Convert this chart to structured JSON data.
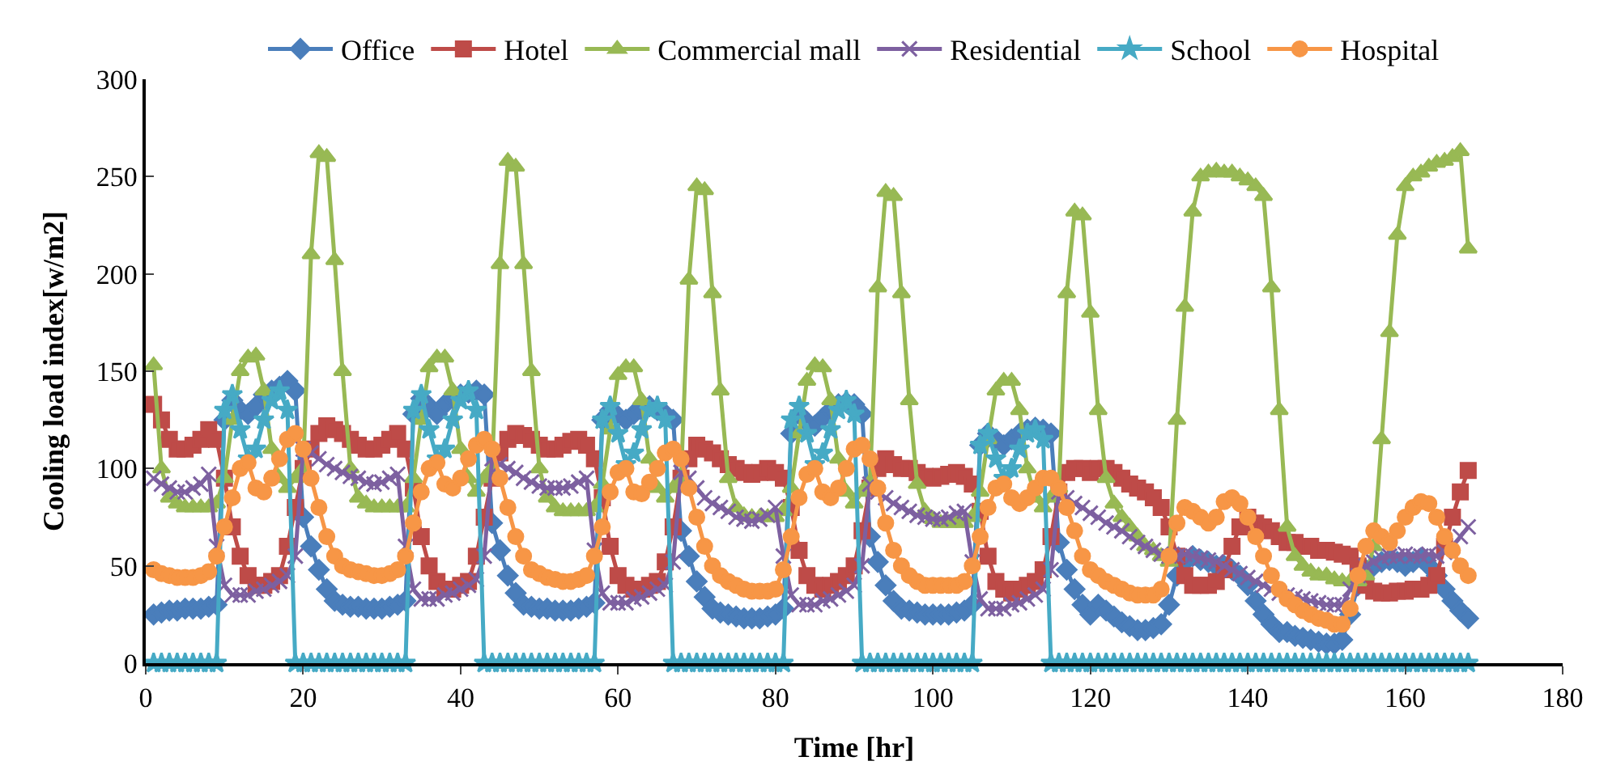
{
  "chart_data": {
    "type": "line",
    "xlabel": "Time [hr]",
    "ylabel": "Cooling load index[w/m2]",
    "x": [
      1,
      2,
      3,
      4,
      5,
      6,
      7,
      8,
      9,
      10,
      11,
      12,
      13,
      14,
      15,
      16,
      17,
      18,
      19,
      20,
      21,
      22,
      23,
      24,
      25,
      26,
      27,
      28,
      29,
      30,
      31,
      32,
      33,
      34,
      35,
      36,
      37,
      38,
      39,
      40,
      41,
      42,
      43,
      44,
      45,
      46,
      47,
      48,
      49,
      50,
      51,
      52,
      53,
      54,
      55,
      56,
      57,
      58,
      59,
      60,
      61,
      62,
      63,
      64,
      65,
      66,
      67,
      68,
      69,
      70,
      71,
      72,
      73,
      74,
      75,
      76,
      77,
      78,
      79,
      80,
      81,
      82,
      83,
      84,
      85,
      86,
      87,
      88,
      89,
      90,
      91,
      92,
      93,
      94,
      95,
      96,
      97,
      98,
      99,
      100,
      101,
      102,
      103,
      104,
      105,
      106,
      107,
      108,
      109,
      110,
      111,
      112,
      113,
      114,
      115,
      116,
      117,
      118,
      119,
      120,
      121,
      122,
      123,
      124,
      125,
      126,
      127,
      128,
      129,
      130,
      131,
      132,
      133,
      134,
      135,
      136,
      137,
      138,
      139,
      140,
      141,
      142,
      143,
      144,
      145,
      146,
      147,
      148,
      149,
      150,
      151,
      152,
      153,
      154,
      155,
      156,
      157,
      158,
      159,
      160,
      161,
      162,
      163,
      164,
      165,
      166,
      167,
      168
    ],
    "xlim": [
      0,
      180
    ],
    "xticks": [
      0,
      20,
      40,
      60,
      80,
      100,
      120,
      140,
      160,
      180
    ],
    "ylim": [
      0,
      300
    ],
    "yticks": [
      0,
      50,
      100,
      150,
      200,
      250,
      300
    ],
    "legend": "top",
    "line_style": "solid",
    "series": [
      {
        "name": "Office",
        "color": "#4a7ebb",
        "marker": "diamond",
        "values": [
          25,
          26,
          27,
          27,
          28,
          28,
          28,
          29,
          30,
          125,
          135,
          130,
          128,
          132,
          138,
          140,
          142,
          145,
          140,
          75,
          60,
          48,
          38,
          32,
          30,
          29,
          29,
          28,
          28,
          28,
          29,
          30,
          32,
          128,
          136,
          132,
          128,
          133,
          136,
          138,
          139,
          140,
          138,
          72,
          58,
          45,
          36,
          30,
          29,
          28,
          28,
          27,
          27,
          27,
          28,
          29,
          31,
          125,
          130,
          127,
          125,
          128,
          130,
          132,
          130,
          128,
          125,
          68,
          55,
          42,
          34,
          28,
          26,
          25,
          24,
          23,
          23,
          23,
          24,
          25,
          28,
          118,
          128,
          124,
          122,
          126,
          130,
          133,
          134,
          133,
          128,
          65,
          52,
          40,
          32,
          28,
          27,
          26,
          25,
          25,
          25,
          25,
          26,
          27,
          30,
          112,
          118,
          115,
          112,
          115,
          118,
          120,
          121,
          120,
          118,
          62,
          48,
          38,
          30,
          25,
          30,
          27,
          24,
          21,
          19,
          17,
          17,
          18,
          20,
          30,
          45,
          52,
          55,
          53,
          52,
          50,
          50,
          48,
          45,
          40,
          32,
          25,
          20,
          16,
          16,
          14,
          13,
          12,
          11,
          10,
          10,
          12,
          25,
          40,
          48,
          50,
          52,
          53,
          52,
          50,
          52,
          54,
          50,
          45,
          38,
          32,
          27,
          23
        ]
      },
      {
        "name": "Hotel",
        "color": "#be4b48",
        "marker": "square",
        "values": [
          133,
          125,
          115,
          110,
          110,
          112,
          115,
          120,
          115,
          95,
          70,
          55,
          45,
          40,
          40,
          42,
          45,
          60,
          80,
          100,
          110,
          118,
          122,
          120,
          118,
          115,
          112,
          110,
          110,
          112,
          115,
          118,
          110,
          90,
          65,
          50,
          42,
          38,
          38,
          40,
          42,
          55,
          75,
          95,
          108,
          115,
          118,
          117,
          115,
          112,
          110,
          110,
          112,
          114,
          115,
          112,
          105,
          85,
          60,
          45,
          40,
          38,
          38,
          40,
          42,
          52,
          70,
          95,
          105,
          112,
          110,
          108,
          105,
          102,
          100,
          98,
          97,
          98,
          100,
          98,
          95,
          80,
          58,
          45,
          40,
          38,
          40,
          42,
          45,
          50,
          68,
          90,
          100,
          105,
          102,
          100,
          100,
          98,
          96,
          95,
          96,
          97,
          98,
          96,
          92,
          78,
          55,
          42,
          38,
          36,
          38,
          40,
          42,
          48,
          65,
          88,
          98,
          100,
          100,
          98,
          100,
          100,
          98,
          95,
          92,
          90,
          88,
          85,
          80,
          70,
          55,
          45,
          40,
          40,
          40,
          42,
          48,
          60,
          70,
          75,
          72,
          70,
          68,
          65,
          62,
          62,
          60,
          60,
          58,
          58,
          57,
          56,
          55,
          50,
          40,
          37,
          36,
          36,
          37,
          37,
          38,
          38,
          40,
          45,
          60,
          75,
          88,
          99
        ]
      },
      {
        "name": "Commercial mall",
        "color": "#98b954",
        "marker": "triangle",
        "values": [
          153,
          100,
          85,
          82,
          80,
          80,
          80,
          80,
          82,
          95,
          125,
          150,
          157,
          158,
          140,
          110,
          95,
          90,
          95,
          100,
          210,
          262,
          260,
          207,
          150,
          100,
          85,
          82,
          80,
          80,
          80,
          80,
          80,
          95,
          125,
          152,
          157,
          157,
          140,
          110,
          95,
          88,
          95,
          100,
          205,
          258,
          255,
          205,
          150,
          100,
          85,
          80,
          78,
          78,
          78,
          78,
          80,
          92,
          120,
          148,
          152,
          152,
          135,
          105,
          90,
          85,
          90,
          95,
          197,
          245,
          243,
          190,
          140,
          95,
          80,
          76,
          75,
          75,
          75,
          75,
          78,
          90,
          118,
          145,
          153,
          152,
          135,
          105,
          88,
          82,
          88,
          93,
          193,
          242,
          240,
          190,
          135,
          92,
          78,
          74,
          72,
          72,
          72,
          72,
          75,
          88,
          115,
          140,
          145,
          145,
          130,
          100,
          85,
          80,
          85,
          90,
          190,
          232,
          230,
          180,
          130,
          95,
          82,
          75,
          70,
          65,
          60,
          58,
          55,
          52,
          125,
          183,
          232,
          250,
          252,
          253,
          252,
          252,
          250,
          248,
          245,
          240,
          193,
          130,
          70,
          55,
          50,
          47,
          45,
          45,
          43,
          42,
          42,
          42,
          45,
          60,
          115,
          170,
          220,
          245,
          250,
          252,
          255,
          257,
          258,
          260,
          263,
          213
        ]
      },
      {
        "name": "Residential",
        "color": "#7d60a0",
        "marker": "cross",
        "values": [
          95,
          92,
          90,
          88,
          88,
          90,
          92,
          97,
          60,
          40,
          35,
          35,
          35,
          37,
          38,
          40,
          42,
          45,
          55,
          110,
          108,
          105,
          102,
          100,
          98,
          96,
          95,
          93,
          92,
          93,
          95,
          97,
          60,
          38,
          33,
          33,
          33,
          35,
          36,
          38,
          40,
          43,
          55,
          105,
          102,
          100,
          98,
          95,
          93,
          91,
          90,
          90,
          90,
          91,
          93,
          95,
          58,
          36,
          31,
          31,
          31,
          33,
          34,
          36,
          38,
          40,
          52,
          98,
          95,
          90,
          85,
          82,
          80,
          78,
          75,
          74,
          73,
          74,
          76,
          80,
          55,
          35,
          30,
          30,
          30,
          32,
          33,
          35,
          37,
          40,
          50,
          92,
          88,
          85,
          82,
          80,
          78,
          76,
          75,
          74,
          74,
          75,
          77,
          78,
          52,
          33,
          28,
          28,
          28,
          30,
          31,
          33,
          35,
          38,
          48,
          88,
          85,
          82,
          80,
          77,
          75,
          72,
          70,
          68,
          65,
          62,
          60,
          58,
          56,
          55,
          55,
          56,
          55,
          54,
          53,
          52,
          50,
          48,
          46,
          44,
          42,
          40,
          38,
          36,
          35,
          34,
          33,
          32,
          31,
          30,
          30,
          30,
          38,
          45,
          50,
          52,
          54,
          55,
          55,
          56,
          55,
          55,
          56,
          55,
          57,
          60,
          65,
          70
        ]
      },
      {
        "name": "School",
        "color": "#46aac5",
        "marker": "star",
        "values": [
          0,
          0,
          0,
          0,
          0,
          0,
          0,
          0,
          0,
          130,
          138,
          120,
          105,
          110,
          125,
          135,
          140,
          130,
          0,
          0,
          0,
          0,
          0,
          0,
          0,
          0,
          0,
          0,
          0,
          0,
          0,
          0,
          0,
          130,
          138,
          120,
          105,
          110,
          125,
          135,
          140,
          130,
          0,
          0,
          0,
          0,
          0,
          0,
          0,
          0,
          0,
          0,
          0,
          0,
          0,
          0,
          0,
          125,
          132,
          118,
          102,
          108,
          120,
          130,
          132,
          125,
          0,
          0,
          0,
          0,
          0,
          0,
          0,
          0,
          0,
          0,
          0,
          0,
          0,
          0,
          0,
          125,
          132,
          118,
          102,
          108,
          120,
          130,
          135,
          128,
          0,
          0,
          0,
          0,
          0,
          0,
          0,
          0,
          0,
          0,
          0,
          0,
          0,
          0,
          0,
          112,
          118,
          105,
          95,
          100,
          110,
          118,
          120,
          115,
          0,
          0,
          0,
          0,
          0,
          0,
          0,
          0,
          0,
          0,
          0,
          0,
          0,
          0,
          0,
          0,
          0,
          0,
          0,
          0,
          0,
          0,
          0,
          0,
          0,
          0,
          0,
          0,
          0,
          0,
          0,
          0,
          0,
          0,
          0,
          0,
          0,
          0,
          0,
          0,
          0,
          0,
          0,
          0,
          0,
          0,
          0,
          0,
          0,
          0,
          0,
          0,
          0,
          0
        ]
      },
      {
        "name": "Hospital",
        "color": "#f79646",
        "marker": "circle",
        "values": [
          48,
          46,
          45,
          44,
          44,
          44,
          45,
          47,
          55,
          70,
          85,
          100,
          103,
          90,
          88,
          95,
          105,
          115,
          118,
          110,
          95,
          80,
          65,
          55,
          50,
          48,
          47,
          46,
          45,
          45,
          46,
          48,
          55,
          72,
          88,
          100,
          103,
          92,
          90,
          95,
          105,
          112,
          115,
          110,
          95,
          80,
          65,
          55,
          48,
          46,
          44,
          43,
          42,
          42,
          43,
          45,
          55,
          70,
          88,
          98,
          100,
          88,
          87,
          93,
          100,
          108,
          110,
          105,
          90,
          75,
          60,
          50,
          45,
          42,
          40,
          38,
          37,
          37,
          37,
          38,
          48,
          65,
          85,
          97,
          100,
          88,
          85,
          90,
          100,
          110,
          112,
          105,
          90,
          72,
          58,
          50,
          45,
          42,
          40,
          40,
          40,
          40,
          40,
          42,
          50,
          65,
          80,
          90,
          92,
          85,
          82,
          85,
          90,
          95,
          95,
          90,
          80,
          68,
          55,
          48,
          45,
          42,
          40,
          38,
          36,
          35,
          35,
          35,
          38,
          55,
          72,
          80,
          78,
          75,
          72,
          75,
          83,
          85,
          82,
          75,
          65,
          55,
          45,
          38,
          33,
          30,
          27,
          25,
          23,
          22,
          20,
          20,
          28,
          45,
          60,
          68,
          65,
          62,
          68,
          75,
          80,
          83,
          82,
          75,
          65,
          58,
          50,
          45
        ]
      }
    ]
  }
}
